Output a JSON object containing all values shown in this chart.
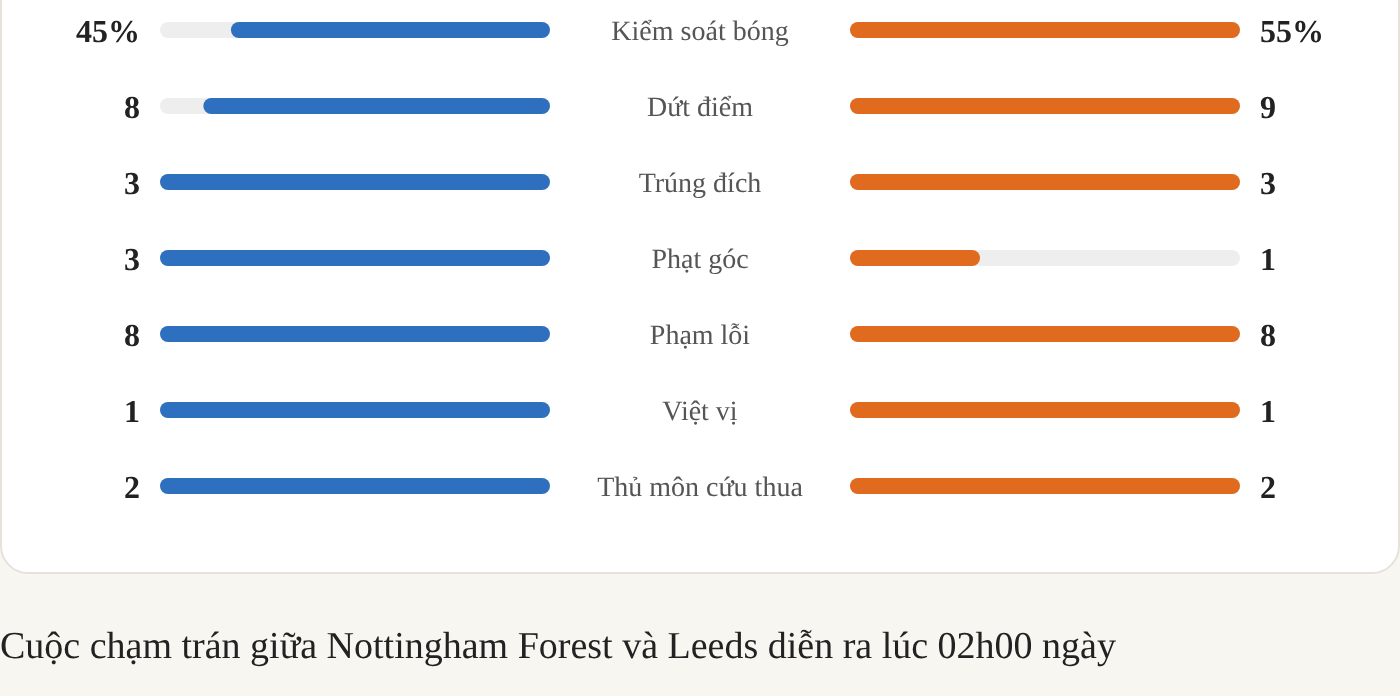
{
  "chart_data": {
    "type": "other",
    "categories": [
      "Kiểm soát bóng",
      "Dứt điểm",
      "Trúng đích",
      "Phạt góc",
      "Phạm lỗi",
      "Việt vị",
      "Thủ môn cứu thua"
    ],
    "series": [
      {
        "color": "#2f6fbf",
        "values": [
          45,
          8,
          3,
          3,
          8,
          1,
          2
        ],
        "value_labels": [
          "45%",
          "8",
          "3",
          "3",
          "8",
          "1",
          "2"
        ]
      },
      {
        "color": "#e06b1f",
        "values": [
          55,
          9,
          3,
          1,
          8,
          1,
          2
        ],
        "value_labels": [
          "55%",
          "9",
          "3",
          "1",
          "8",
          "1",
          "2"
        ]
      }
    ],
    "annotations": [
      "Cuộc chạm trán giữa Nottingham Forest và Leeds diễn ra lúc 02h00 ngày"
    ]
  }
}
